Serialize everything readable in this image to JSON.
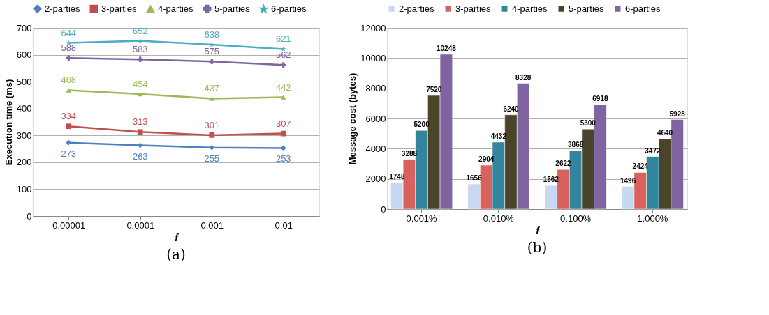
{
  "chart_data": [
    {
      "type": "line",
      "xlabel": "f",
      "ylabel": "Execution time (ms)",
      "categories": [
        "0.00001",
        "0.0001",
        "0.001",
        "0.01"
      ],
      "ylim": [
        0,
        700
      ],
      "yticks": [
        0,
        100,
        200,
        300,
        400,
        500,
        600,
        700
      ],
      "grid": "y",
      "legend": "top",
      "data_labels": true,
      "annotations": [
        "(a)"
      ],
      "series": [
        {
          "name": "2-parties",
          "color": "#4f81bd",
          "marker": "diamond",
          "values": [
            273,
            263,
            255,
            253
          ]
        },
        {
          "name": "3-parties",
          "color": "#c0504d",
          "marker": "square",
          "values": [
            334,
            313,
            301,
            307
          ]
        },
        {
          "name": "4-parties",
          "color": "#9bbb59",
          "marker": "triangle",
          "values": [
            468,
            454,
            437,
            442
          ]
        },
        {
          "name": "5-parties",
          "color": "#8064a2",
          "marker": "cross",
          "values": [
            588,
            583,
            575,
            562
          ]
        },
        {
          "name": "6-parties",
          "color": "#4bacc6",
          "marker": "star",
          "values": [
            644,
            652,
            638,
            621
          ]
        }
      ]
    },
    {
      "type": "bar",
      "xlabel": "f",
      "ylabel": "Message cost (bytes)",
      "categories": [
        "0.001%",
        "0.010%",
        "0.100%",
        "1.000%"
      ],
      "ylim": [
        0,
        12000
      ],
      "yticks": [
        0,
        2000,
        4000,
        6000,
        8000,
        10000,
        12000
      ],
      "grid": "y",
      "legend": "top",
      "data_labels": true,
      "annotations": [
        "(b)"
      ],
      "series": [
        {
          "name": "2-parties",
          "color": "#c6d9f1",
          "values": [
            1748,
            1656,
            1562,
            1496
          ]
        },
        {
          "name": "3-parties",
          "color": "#d9625e",
          "values": [
            3288,
            2904,
            2622,
            2424
          ]
        },
        {
          "name": "4-parties",
          "color": "#31859c",
          "values": [
            5200,
            4432,
            3868,
            3472
          ]
        },
        {
          "name": "5-parties",
          "color": "#4a452a",
          "values": [
            7520,
            6240,
            5300,
            4640
          ]
        },
        {
          "name": "6-parties",
          "color": "#8064a2",
          "values": [
            10248,
            8328,
            6918,
            5928
          ]
        }
      ]
    }
  ]
}
